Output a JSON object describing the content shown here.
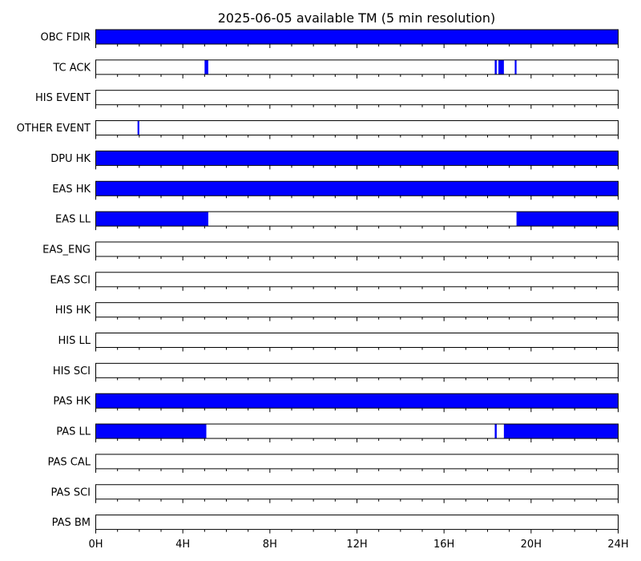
{
  "chart_data": {
    "type": "timeline",
    "title": "2025-06-05 available TM (5 min resolution)",
    "x_unit": "hour",
    "xlim": [
      0,
      24
    ],
    "x_ticks": [
      0,
      4,
      8,
      12,
      16,
      20,
      24
    ],
    "x_tick_labels": [
      "0H",
      "4H",
      "8H",
      "12H",
      "16H",
      "20H",
      "24H"
    ],
    "fill_color": "#0000ff",
    "rows": [
      {
        "label": "OBC FDIR",
        "intervals": [
          [
            0,
            24
          ]
        ]
      },
      {
        "label": "TC ACK",
        "intervals": [
          [
            5.0,
            5.17
          ],
          [
            18.33,
            18.42
          ],
          [
            18.5,
            18.75
          ],
          [
            19.25,
            19.33
          ]
        ]
      },
      {
        "label": "HIS EVENT",
        "intervals": []
      },
      {
        "label": "OTHER EVENT",
        "intervals": [
          [
            1.92,
            2.0
          ]
        ]
      },
      {
        "label": "DPU HK",
        "intervals": [
          [
            0,
            24
          ]
        ]
      },
      {
        "label": "EAS HK",
        "intervals": [
          [
            0,
            24
          ]
        ]
      },
      {
        "label": "EAS LL",
        "intervals": [
          [
            0,
            5.17
          ],
          [
            19.33,
            24
          ]
        ]
      },
      {
        "label": "EAS_ENG",
        "intervals": []
      },
      {
        "label": "EAS SCI",
        "intervals": []
      },
      {
        "label": "HIS HK",
        "intervals": []
      },
      {
        "label": "HIS LL",
        "intervals": []
      },
      {
        "label": "HIS SCI",
        "intervals": []
      },
      {
        "label": "PAS HK",
        "intervals": [
          [
            0,
            24
          ]
        ]
      },
      {
        "label": "PAS LL",
        "intervals": [
          [
            0,
            5.08
          ],
          [
            18.33,
            18.42
          ],
          [
            18.75,
            24
          ]
        ]
      },
      {
        "label": "PAS CAL",
        "intervals": []
      },
      {
        "label": "PAS SCI",
        "intervals": []
      },
      {
        "label": "PAS BM",
        "intervals": []
      }
    ]
  }
}
